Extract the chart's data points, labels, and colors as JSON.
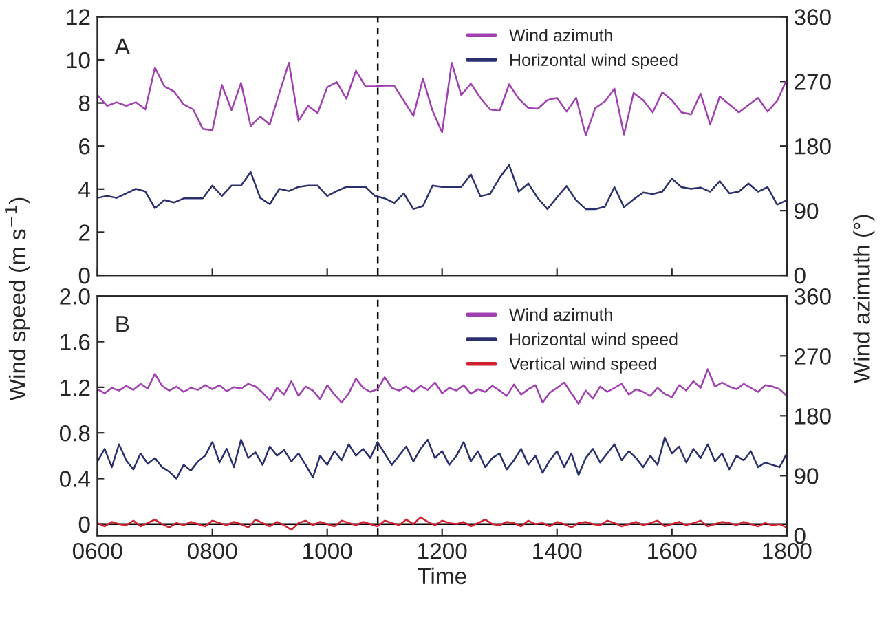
{
  "chart_data": [
    {
      "type": "line",
      "annotations": [
        "A"
      ],
      "ylabel": "Wind speed (m s$^{−1}$)",
      "y2label": "Wind azimuth (°)",
      "x": [
        600,
        616.67,
        633.33,
        650,
        666.67,
        683.33,
        700,
        716.67,
        733.33,
        750,
        766.67,
        783.33,
        800,
        816.67,
        833.33,
        850,
        866.67,
        883.33,
        900,
        916.67,
        933.33,
        950,
        966.67,
        983.33,
        1000,
        1016.67,
        1033.33,
        1050,
        1066.67,
        1083.33,
        1100,
        1116.67,
        1133.33,
        1150,
        1166.67,
        1183.33,
        1200,
        1216.67,
        1233.33,
        1250,
        1266.67,
        1283.33,
        1300,
        1316.67,
        1333.33,
        1350,
        1366.67,
        1383.33,
        1400,
        1416.67,
        1433.33,
        1450,
        1466.67,
        1483.33,
        1500,
        1516.67,
        1533.33,
        1550,
        1566.67,
        1583.33,
        1600,
        1616.67,
        1633.33,
        1650,
        1666.67,
        1683.33,
        1700,
        1716.67,
        1733.33,
        1750,
        1766.67,
        1783.33,
        1800
      ],
      "series": [
        {
          "name": "Wind azimuth",
          "color": "#a040b0",
          "axis": "y2",
          "values": [
            251,
            236,
            241,
            236,
            241,
            231,
            289,
            263,
            256,
            238,
            231,
            204,
            202,
            265,
            230,
            268,
            208,
            221,
            210,
            254,
            296,
            215,
            236,
            226,
            262,
            269,
            246,
            285,
            263,
            263,
            264,
            264,
            243,
            222,
            274,
            229,
            199,
            296,
            251,
            267,
            247,
            231,
            229,
            266,
            246,
            233,
            232,
            244,
            247,
            228,
            247,
            195,
            233,
            242,
            260,
            196,
            254,
            244,
            227,
            255,
            244,
            227,
            224,
            253,
            210,
            249,
            238,
            227,
            237,
            247,
            228,
            243,
            273
          ]
        },
        {
          "name": "Horizontal wind speed",
          "color": "#2a2f6e",
          "values": [
            3.59,
            3.68,
            3.59,
            3.8,
            4.01,
            3.89,
            3.11,
            3.49,
            3.38,
            3.57,
            3.57,
            3.57,
            4.16,
            3.68,
            4.16,
            4.16,
            4.79,
            3.59,
            3.3,
            4.01,
            3.91,
            4.1,
            4.16,
            4.16,
            3.68,
            3.91,
            4.1,
            4.1,
            4.1,
            3.68,
            3.57,
            3.36,
            3.8,
            3.07,
            3.21,
            4.16,
            4.1,
            4.1,
            4.1,
            4.68,
            3.67,
            3.77,
            4.52,
            5.12,
            3.88,
            4.26,
            3.58,
            3.07,
            3.62,
            4.14,
            3.48,
            3.07,
            3.07,
            3.18,
            4.09,
            3.16,
            3.52,
            3.84,
            3.77,
            3.88,
            4.48,
            4.09,
            4.01,
            4.07,
            3.88,
            4.37,
            3.8,
            3.88,
            4.26,
            3.88,
            4.09,
            3.28,
            3.48
          ]
        }
      ],
      "xlim": [
        600,
        1800
      ],
      "xticks": [
        600,
        800,
        1000,
        1200,
        1400,
        1600,
        1800
      ],
      "ylim": [
        0,
        12
      ],
      "yticks": [
        0,
        2,
        4,
        6,
        8,
        10,
        12
      ],
      "y2lim": [
        0,
        360
      ],
      "y2ticks": [
        0,
        90,
        180,
        270,
        360
      ],
      "tick_labels": "y",
      "legend": "top right",
      "ref_lines": [
        {
          "axis": "x",
          "value": 1088,
          "color": "#000000",
          "line_style": "dashed"
        }
      ]
    },
    {
      "type": "line",
      "annotations": [
        "B"
      ],
      "xlabel": "Time",
      "x": [
        600,
        612.5,
        625,
        637.5,
        650,
        662.5,
        675,
        687.5,
        700,
        712.5,
        725,
        737.5,
        750,
        762.5,
        775,
        787.5,
        800,
        812.5,
        825,
        837.5,
        850,
        862.5,
        875,
        887.5,
        900,
        912.5,
        925,
        937.5,
        950,
        962.5,
        975,
        987.5,
        1000,
        1012.5,
        1025,
        1037.5,
        1050,
        1062.5,
        1075,
        1087.5,
        1100,
        1112.5,
        1125,
        1137.5,
        1150,
        1162.5,
        1175,
        1187.5,
        1200,
        1212.5,
        1225,
        1237.5,
        1250,
        1262.5,
        1275,
        1287.5,
        1300,
        1312.5,
        1325,
        1337.5,
        1350,
        1362.5,
        1375,
        1387.5,
        1400,
        1412.5,
        1425,
        1437.5,
        1450,
        1462.5,
        1475,
        1487.5,
        1500,
        1512.5,
        1525,
        1537.5,
        1550,
        1562.5,
        1575,
        1587.5,
        1600,
        1612.5,
        1625,
        1637.5,
        1650,
        1662.5,
        1675,
        1687.5,
        1700,
        1712.5,
        1725,
        1737.5,
        1750,
        1762.5,
        1775,
        1787.5,
        1800
      ],
      "series": [
        {
          "name": "Wind azimuth",
          "color": "#a040b0",
          "axis": "y2",
          "values": [
            220,
            214,
            222,
            218,
            225,
            219,
            228,
            221,
            243,
            225,
            218,
            224,
            216,
            222,
            219,
            226,
            220,
            226,
            217,
            223,
            221,
            228,
            224,
            215,
            203,
            222,
            212,
            232,
            210,
            224,
            218,
            205,
            226,
            212,
            200,
            214,
            236,
            222,
            216,
            220,
            238,
            222,
            218,
            224,
            216,
            225,
            219,
            230,
            214,
            222,
            218,
            226,
            213,
            220,
            216,
            225,
            218,
            210,
            227,
            212,
            220,
            226,
            200,
            215,
            222,
            230,
            214,
            198,
            218,
            206,
            224,
            216,
            222,
            228,
            212,
            220,
            216,
            210,
            222,
            213,
            208,
            226,
            218,
            232,
            222,
            250,
            224,
            230,
            224,
            220,
            228,
            222,
            216,
            226,
            224,
            220,
            210
          ]
        },
        {
          "name": "Horizontal wind speed",
          "color": "#2a2f6e",
          "values": [
            0.55,
            0.66,
            0.5,
            0.7,
            0.56,
            0.48,
            0.62,
            0.53,
            0.58,
            0.5,
            0.46,
            0.4,
            0.52,
            0.47,
            0.55,
            0.6,
            0.72,
            0.54,
            0.66,
            0.5,
            0.74,
            0.58,
            0.63,
            0.52,
            0.68,
            0.6,
            0.65,
            0.55,
            0.62,
            0.52,
            0.41,
            0.6,
            0.52,
            0.64,
            0.56,
            0.7,
            0.6,
            0.66,
            0.58,
            0.72,
            0.62,
            0.52,
            0.6,
            0.68,
            0.55,
            0.66,
            0.74,
            0.58,
            0.64,
            0.52,
            0.6,
            0.72,
            0.55,
            0.64,
            0.5,
            0.58,
            0.62,
            0.48,
            0.56,
            0.66,
            0.52,
            0.6,
            0.45,
            0.56,
            0.64,
            0.5,
            0.62,
            0.43,
            0.58,
            0.66,
            0.54,
            0.62,
            0.7,
            0.56,
            0.64,
            0.58,
            0.5,
            0.6,
            0.52,
            0.76,
            0.62,
            0.68,
            0.54,
            0.66,
            0.58,
            0.7,
            0.55,
            0.62,
            0.48,
            0.6,
            0.56,
            0.64,
            0.5,
            0.54,
            0.52,
            0.5,
            0.62
          ]
        },
        {
          "name": "Vertical wind speed",
          "color": "#d02030",
          "values": [
            0.01,
            -0.02,
            0.02,
            0.0,
            -0.01,
            0.03,
            -0.02,
            0.01,
            0.04,
            0.0,
            -0.03,
            0.01,
            -0.01,
            0.02,
            0.0,
            -0.02,
            0.03,
            0.01,
            -0.01,
            0.02,
            0.0,
            -0.03,
            0.04,
            0.01,
            -0.02,
            0.02,
            -0.01,
            -0.05,
            0.01,
            0.03,
            -0.01,
            0.02,
            0.0,
            -0.02,
            0.03,
            0.01,
            -0.01,
            0.02,
            0.0,
            -0.02,
            0.03,
            0.01,
            -0.01,
            0.04,
            0.0,
            0.06,
            0.02,
            -0.01,
            0.03,
            0.01,
            0.0,
            0.02,
            -0.02,
            0.01,
            0.04,
            0.0,
            -0.01,
            0.02,
            0.01,
            -0.02,
            0.03,
            0.0,
            0.01,
            -0.02,
            0.02,
            0.0,
            -0.03,
            0.01,
            0.02,
            0.0,
            -0.01,
            0.03,
            0.01,
            -0.02,
            0.0,
            0.02,
            -0.01,
            0.01,
            0.03,
            -0.02,
            0.0,
            0.02,
            -0.01,
            0.01,
            0.03,
            -0.02,
            0.0,
            0.02,
            0.01,
            -0.01,
            0.02,
            0.0,
            -0.02,
            0.01,
            -0.01,
            0.0,
            -0.03
          ]
        }
      ],
      "xlim": [
        600,
        1800
      ],
      "xticks": [
        {
          "value": 600,
          "label": "0600"
        },
        {
          "value": 800,
          "label": "0800"
        },
        {
          "value": 1000,
          "label": "1000"
        },
        {
          "value": 1200,
          "label": "1200"
        },
        {
          "value": 1400,
          "label": "1400"
        },
        {
          "value": 1600,
          "label": "1600"
        },
        {
          "value": 1800,
          "label": "1800"
        }
      ],
      "ylim": [
        -0.1,
        2.0
      ],
      "yticks": [
        0,
        0.4,
        0.8,
        1.2,
        1.6,
        {
          "value": 2.0,
          "label": "2.0"
        }
      ],
      "y2lim": [
        0,
        360
      ],
      "y2ticks": [
        0,
        90,
        180,
        270,
        360
      ],
      "legend": "top right",
      "ref_lines": [
        {
          "axis": "x",
          "value": 1088,
          "color": "#000000",
          "line_style": "dashed"
        },
        {
          "axis": "y",
          "value": 0,
          "color": "#000000",
          "line_style": "solid"
        }
      ]
    }
  ]
}
